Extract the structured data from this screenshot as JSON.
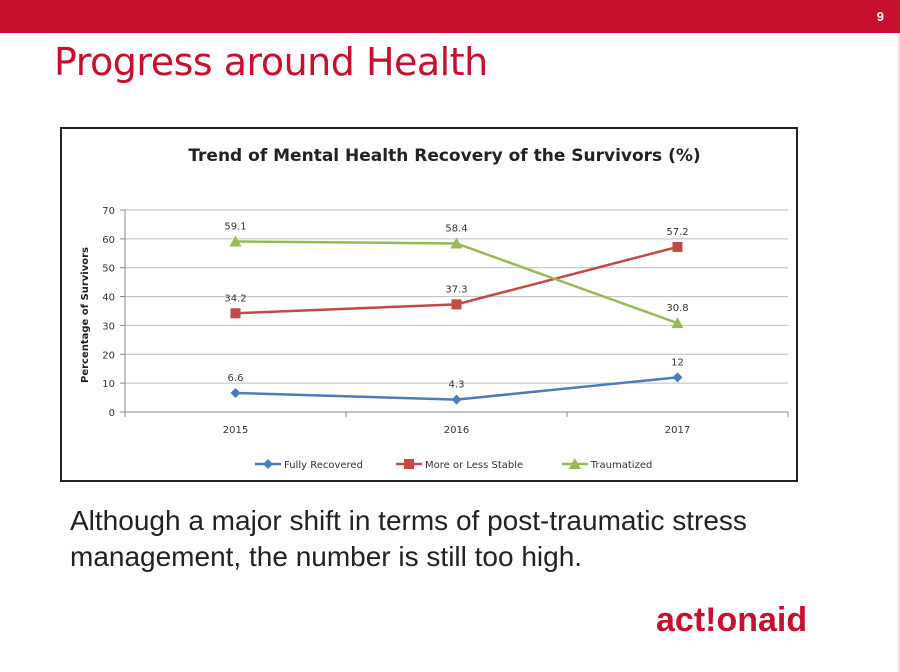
{
  "slide": {
    "number": "9",
    "title": "Progress around Health",
    "caption": "Although a major shift in terms of post-traumatic stress management, the number is still too high.",
    "logo_text": "act!onaid",
    "accent_color": "#c8102e"
  },
  "chart_data": {
    "type": "line",
    "title": "Trend of Mental Health Recovery of the Survivors (%)",
    "xlabel": "",
    "ylabel": "Percentage of Survivors",
    "categories": [
      "2015",
      "2016",
      "2017"
    ],
    "ylim": [
      0,
      70
    ],
    "yticks": [
      "0",
      "10",
      "20",
      "30",
      "40",
      "50",
      "60",
      "70"
    ],
    "grid": true,
    "legend_position": "bottom",
    "series": [
      {
        "name": "Fully Recovered",
        "values": [
          6.6,
          4.3,
          12
        ],
        "labels": [
          "6.6",
          "4.3",
          "12"
        ],
        "color": "#4a7ebb",
        "marker": "diamond"
      },
      {
        "name": "More or Less Stable",
        "values": [
          34.2,
          37.3,
          57.2
        ],
        "labels": [
          "34.2",
          "37.3",
          "57.2"
        ],
        "color": "#be4b48",
        "marker": "square"
      },
      {
        "name": "Traumatized",
        "values": [
          59.1,
          58.4,
          30.8
        ],
        "labels": [
          "59.1",
          "58.4",
          "30.8"
        ],
        "color": "#98b954",
        "marker": "triangle"
      }
    ]
  }
}
